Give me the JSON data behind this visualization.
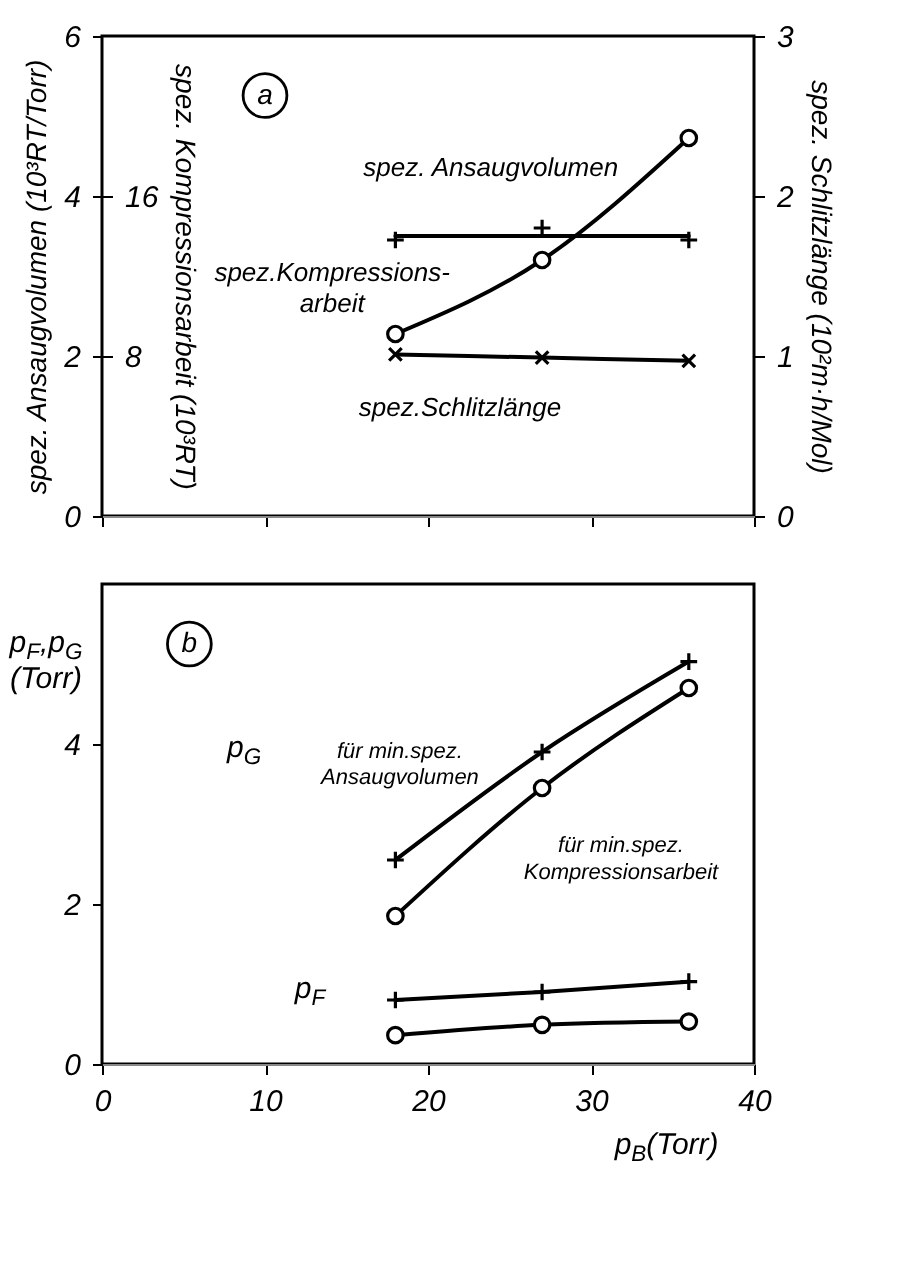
{
  "chart_data": [
    {
      "type": "line",
      "x": [
        18,
        27,
        36
      ],
      "xlim": [
        0,
        40
      ],
      "xticks": [
        0,
        10,
        20,
        30,
        40
      ],
      "ylim": [
        0,
        6
      ],
      "yticks": [
        0,
        2,
        4,
        6
      ],
      "y2lim": [
        0,
        24
      ],
      "y2ticks": [
        8,
        16
      ],
      "y3lim": [
        0,
        3
      ],
      "y3ticks": [
        0,
        1,
        2,
        3
      ],
      "ylabel": "spez. Ansaugvolumen (10³RT/Torr)",
      "y2label": "spez. Kompressionsarbeit (10³RT)",
      "y3label": "spez. Schlitzlänge (10²m·h/Mol)",
      "tick_labels": "y",
      "series": [
        {
          "type": "scatter",
          "color": "#000000",
          "marker": "cross",
          "values": [
            3.45,
            3.6,
            3.45
          ]
        },
        {
          "color": "#000000",
          "marker": "none",
          "x": [
            18,
            36
          ],
          "values": [
            3.5,
            3.5
          ]
        },
        {
          "color": "#000000",
          "marker": "circle",
          "axis": "y2",
          "values": [
            9.1,
            12.8,
            18.9
          ]
        },
        {
          "color": "#000000",
          "marker": "x",
          "axis": "y3",
          "values": [
            1.01,
            0.99,
            0.97
          ]
        }
      ],
      "annotations": [
        "a",
        "spez. Ansaugvolumen",
        "spez.Kompressions-\narbeit",
        "spez.Schlitzlänge"
      ]
    },
    {
      "type": "line",
      "x": [
        18,
        27,
        36
      ],
      "xlim": [
        0,
        40
      ],
      "xticks": [
        0,
        10,
        20,
        30,
        40
      ],
      "ylim": [
        0,
        6
      ],
      "yticks": [
        0,
        2,
        4
      ],
      "xlabel": "p$_{B}$(Torr)",
      "ylabel": "p$_{F}$,p$_{G}$\n(Torr)",
      "series": [
        {
          "color": "#000000",
          "marker": "cross",
          "values": [
            2.55,
            3.9,
            5.03
          ]
        },
        {
          "color": "#000000",
          "marker": "circle",
          "values": [
            1.85,
            3.45,
            4.7
          ]
        },
        {
          "color": "#000000",
          "marker": "cross",
          "values": [
            0.8,
            0.9,
            1.03
          ]
        },
        {
          "color": "#000000",
          "marker": "circle",
          "values": [
            0.36,
            0.49,
            0.53
          ]
        }
      ],
      "annotations": [
        "b",
        "p$_{G}$",
        "für min.spez.\nAnsaugvolumen",
        "für min.spez.\nKompressionsarbeit",
        "p$_{F}$"
      ]
    }
  ]
}
